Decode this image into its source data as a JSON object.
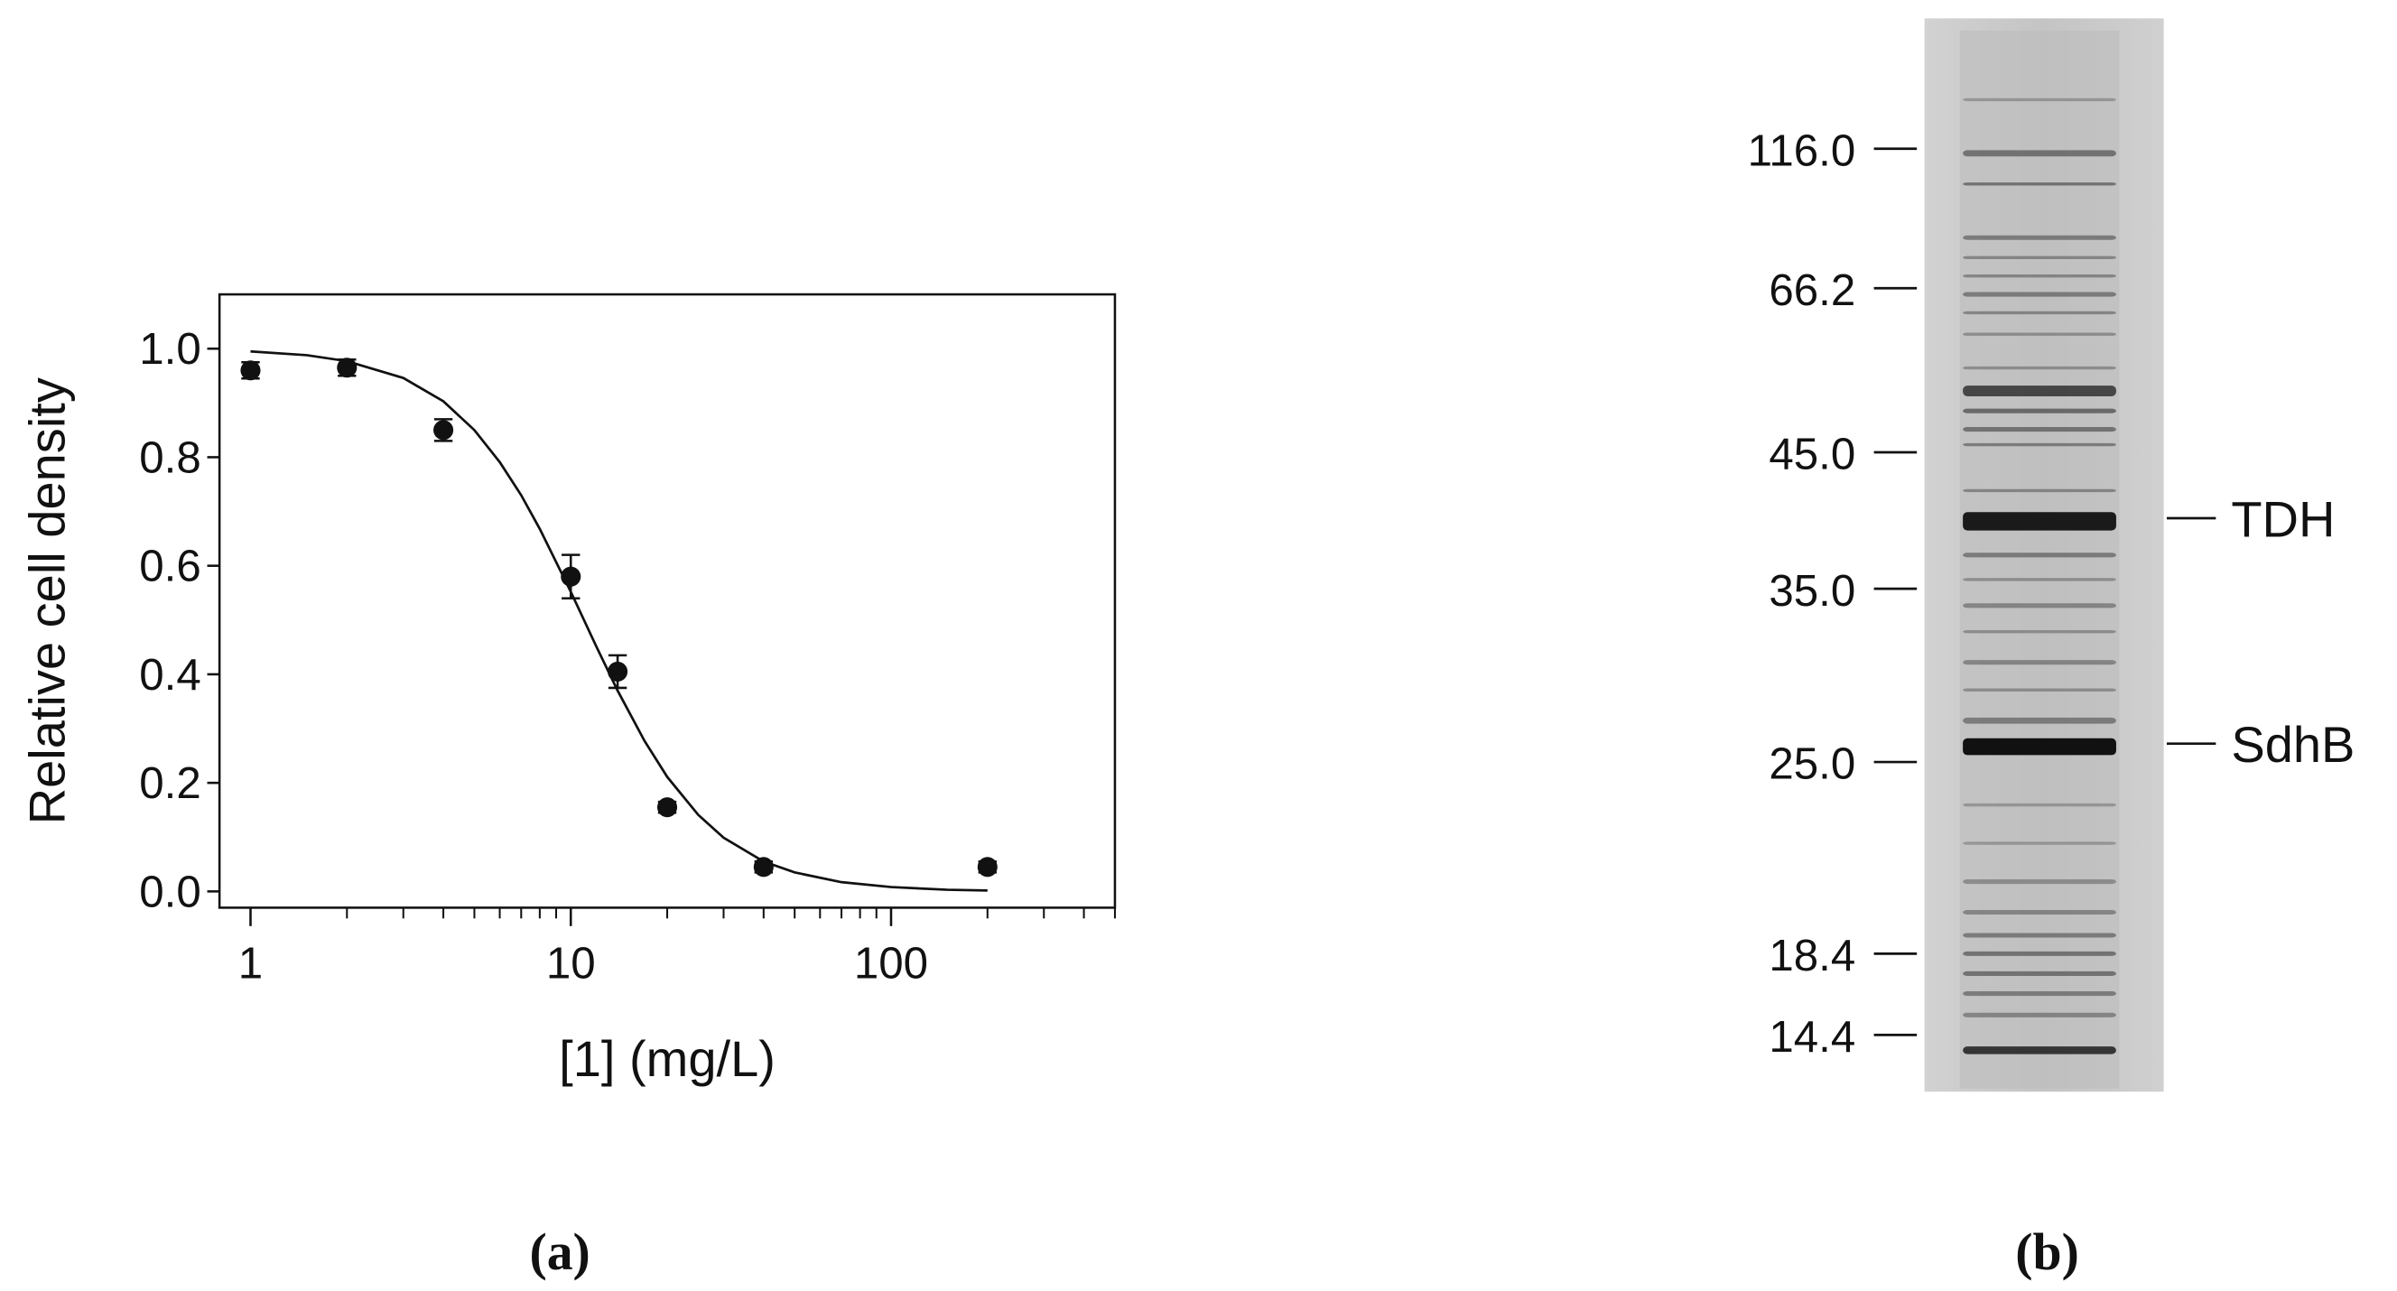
{
  "chart_data": {
    "type": "scatter",
    "xlabel": "[1] (mg/L)",
    "ylabel": "Relative cell density",
    "xscale": "log",
    "xlim": [
      0.8,
      500
    ],
    "ylim": [
      -0.03,
      1.1
    ],
    "xticks": [
      1,
      10,
      100
    ],
    "xminorticks": [
      2,
      3,
      4,
      5,
      6,
      7,
      8,
      9,
      20,
      30,
      40,
      50,
      60,
      70,
      80,
      90,
      200,
      300,
      400,
      500
    ],
    "yticks": [
      {
        "value": 0,
        "label": "0.0"
      },
      0.2,
      0.4,
      0.6,
      0.8,
      {
        "value": 1,
        "label": "1.0"
      }
    ],
    "x": [
      1,
      2,
      4,
      10,
      14,
      20,
      40,
      200
    ],
    "values": [
      0.96,
      0.965,
      0.85,
      0.58,
      0.405,
      0.155,
      0.045,
      0.045
    ],
    "errors": [
      0.015,
      0.015,
      0.02,
      0.04,
      0.03,
      0.01,
      0.01,
      0.01
    ],
    "color": "#111111",
    "fit": {
      "x": [
        1,
        1.5,
        2,
        3,
        4,
        5,
        6,
        7,
        8,
        10,
        12,
        14,
        17,
        20,
        25,
        30,
        40,
        50,
        70,
        100,
        150,
        200
      ],
      "values": [
        0.995,
        0.988,
        0.977,
        0.946,
        0.903,
        0.85,
        0.791,
        0.73,
        0.668,
        0.552,
        0.452,
        0.37,
        0.277,
        0.211,
        0.141,
        0.099,
        0.055,
        0.035,
        0.017,
        0.008,
        0.003,
        0.0017
      ]
    },
    "panel_label": "(a)"
  },
  "gel": {
    "markers": [
      "116.0",
      "66.2",
      "45.0",
      "35.0",
      "25.0",
      "18.4",
      "14.4"
    ],
    "bands": [
      "TDH",
      "SdhB"
    ],
    "panel_label": "(b)"
  }
}
